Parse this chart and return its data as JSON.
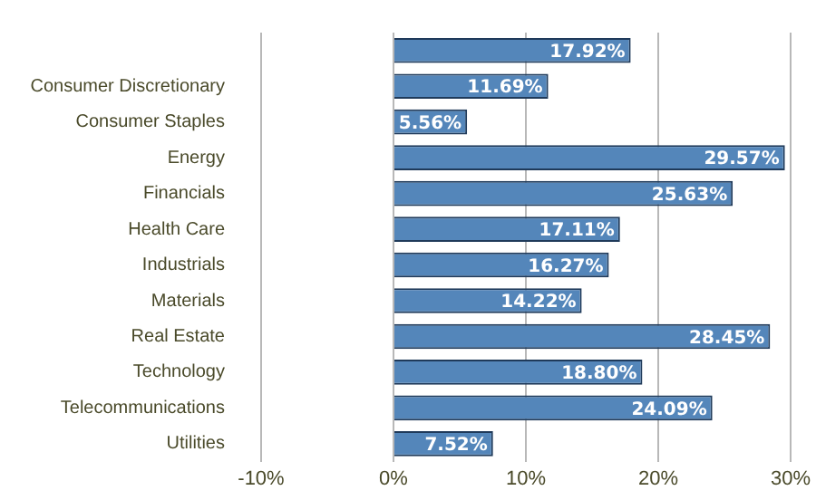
{
  "chart_data": {
    "type": "bar",
    "orientation": "horizontal",
    "categories": [
      null,
      "Consumer Discretionary",
      "Consumer Staples",
      "Energy",
      "Financials",
      "Health Care",
      "Industrials",
      "Materials",
      "Real Estate",
      "Technology",
      "Telecommunications",
      "Utilities"
    ],
    "values": [
      17.92,
      11.69,
      5.56,
      29.57,
      25.63,
      17.11,
      16.27,
      14.22,
      28.45,
      18.8,
      24.09,
      7.52
    ],
    "value_labels": [
      "17.92%",
      "11.69%",
      "5.56%",
      "29.57%",
      "25.63%",
      "17.11%",
      "16.27%",
      "14.22%",
      "28.45%",
      "18.80%",
      "24.09%",
      "7.52%"
    ],
    "color": "#5486ba",
    "xlim": [
      -10,
      30
    ],
    "xticks": [
      {
        "value": -10,
        "label": "-10%"
      },
      {
        "value": 0,
        "label": "0%"
      },
      {
        "value": 10,
        "label": "10%"
      },
      {
        "value": 20,
        "label": "20%"
      },
      {
        "value": 30,
        "label": "30%"
      }
    ],
    "grid": "x",
    "legend": false
  }
}
